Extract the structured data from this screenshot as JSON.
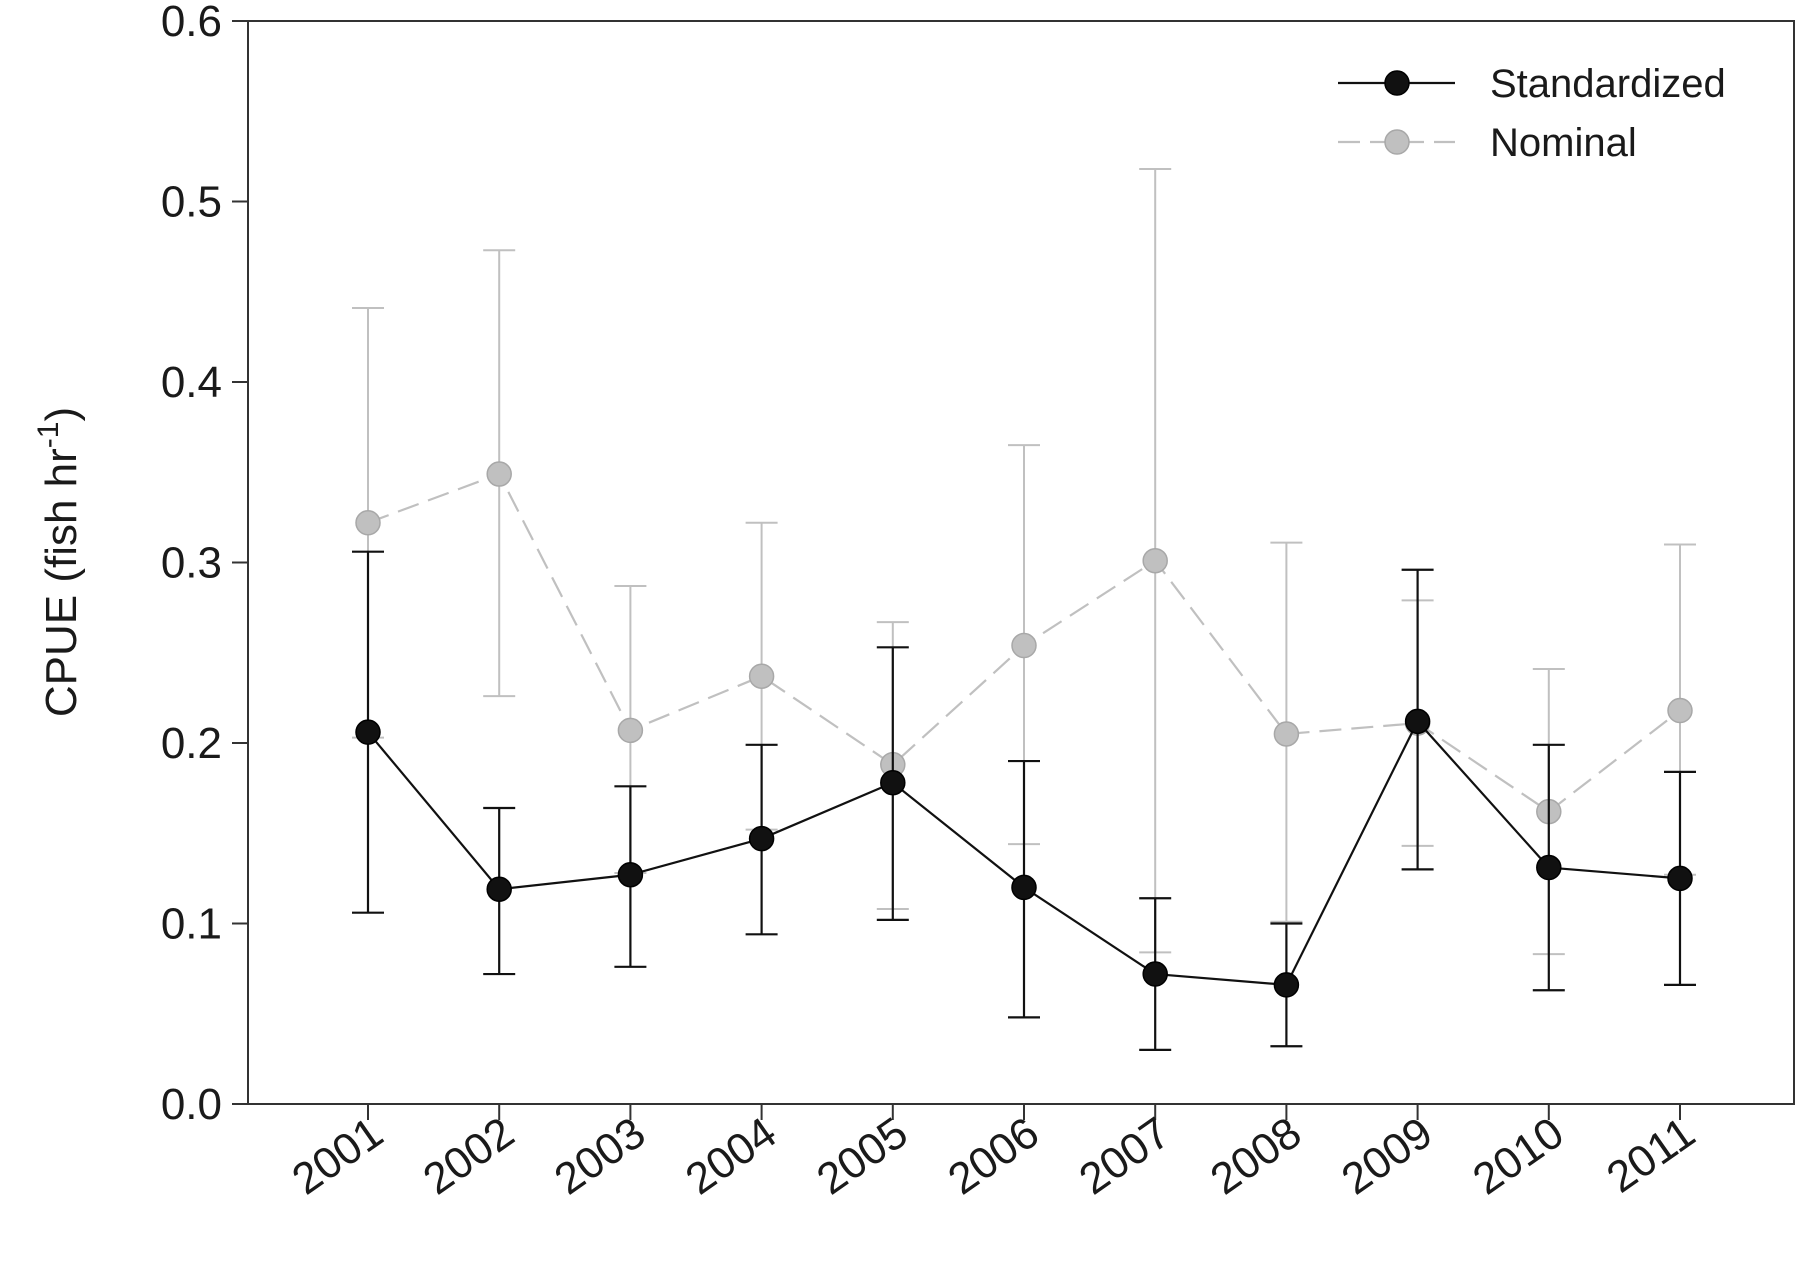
{
  "chart_data": {
    "type": "line",
    "title": "",
    "xlabel": "",
    "ylabel": {
      "main": "CPUE (fish hr",
      "sup": "-1",
      "close": ")"
    },
    "ylim": [
      0.0,
      0.6
    ],
    "yticks": [
      "0.0",
      "0.1",
      "0.2",
      "0.3",
      "0.4",
      "0.5",
      "0.6"
    ],
    "categories": [
      "2001",
      "2002",
      "2003",
      "2004",
      "2005",
      "2006",
      "2007",
      "2008",
      "2009",
      "2010",
      "2011"
    ],
    "grid": false,
    "legend_position": "top-right",
    "series": [
      {
        "name": "Standardized",
        "color": "#111111",
        "line_style": "solid",
        "values": [
          0.206,
          0.119,
          0.127,
          0.147,
          0.178,
          0.12,
          0.072,
          0.066,
          0.212,
          0.131,
          0.125
        ],
        "lower": [
          0.106,
          0.072,
          0.076,
          0.094,
          0.102,
          0.048,
          0.03,
          0.032,
          0.13,
          0.063,
          0.066
        ],
        "upper": [
          0.306,
          0.164,
          0.176,
          0.199,
          0.253,
          0.19,
          0.114,
          0.1,
          0.296,
          0.199,
          0.184
        ]
      },
      {
        "name": "Nominal",
        "color": "#c0c0c0",
        "line_style": "dashed",
        "values": [
          0.322,
          0.349,
          0.207,
          0.237,
          0.188,
          0.254,
          0.301,
          0.205,
          0.211,
          0.162,
          0.218
        ],
        "lower": [
          0.203,
          0.226,
          0.128,
          0.152,
          0.108,
          0.144,
          0.084,
          0.101,
          0.143,
          0.083,
          0.127
        ],
        "upper": [
          0.441,
          0.473,
          0.287,
          0.322,
          0.267,
          0.365,
          0.518,
          0.311,
          0.279,
          0.241,
          0.31
        ]
      }
    ]
  }
}
